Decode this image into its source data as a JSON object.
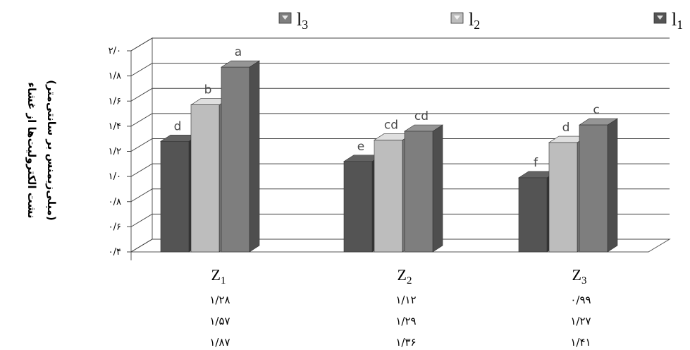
{
  "chart_data": {
    "type": "bar",
    "style": "3d-clustered-column",
    "ylabel_line1": "نشت الکترولیت‌ها از غشاء",
    "ylabel_line2": "(میلی‌زیمنس بر سانتی‌متر)",
    "ylim": [
      0.4,
      2.0
    ],
    "yticks": [
      "۰/۴",
      "۰/۶",
      "۰/۸",
      "۱/۰",
      "۱/۲",
      "۱/۴",
      "۱/۶",
      "۱/۸",
      "۲/۰"
    ],
    "ytick_values": [
      0.4,
      0.6,
      0.8,
      1.0,
      1.2,
      1.4,
      1.6,
      1.8,
      2.0
    ],
    "grid": true,
    "legend_position": "top",
    "categories": [
      {
        "base": "Z",
        "sub": "1"
      },
      {
        "base": "Z",
        "sub": "2"
      },
      {
        "base": "Z",
        "sub": "3"
      }
    ],
    "series": [
      {
        "key": "l1",
        "base": "l",
        "sub": "1",
        "color": "#545454",
        "values": [
          1.28,
          1.12,
          0.99
        ],
        "labels": [
          "d",
          "e",
          "f"
        ],
        "table_text": [
          "۱/۲۸",
          "۱/۱۲",
          "۰/۹۹"
        ]
      },
      {
        "key": "l2",
        "base": "l",
        "sub": "2",
        "color": "#bdbdbd",
        "values": [
          1.57,
          1.29,
          1.27
        ],
        "labels": [
          "b",
          "cd",
          "d"
        ],
        "table_text": [
          "۱/۵۷",
          "۱/۲۹",
          "۱/۲۷"
        ]
      },
      {
        "key": "l3",
        "base": "l",
        "sub": "3",
        "color": "#7e7e7e",
        "values": [
          1.87,
          1.36,
          1.41
        ],
        "labels": [
          "a",
          "cd",
          "c"
        ],
        "table_text": [
          "۱/۸۷",
          "۱/۳۶",
          "۱/۴۱"
        ]
      }
    ],
    "legend_order": [
      "l3",
      "l2",
      "l1"
    ]
  }
}
